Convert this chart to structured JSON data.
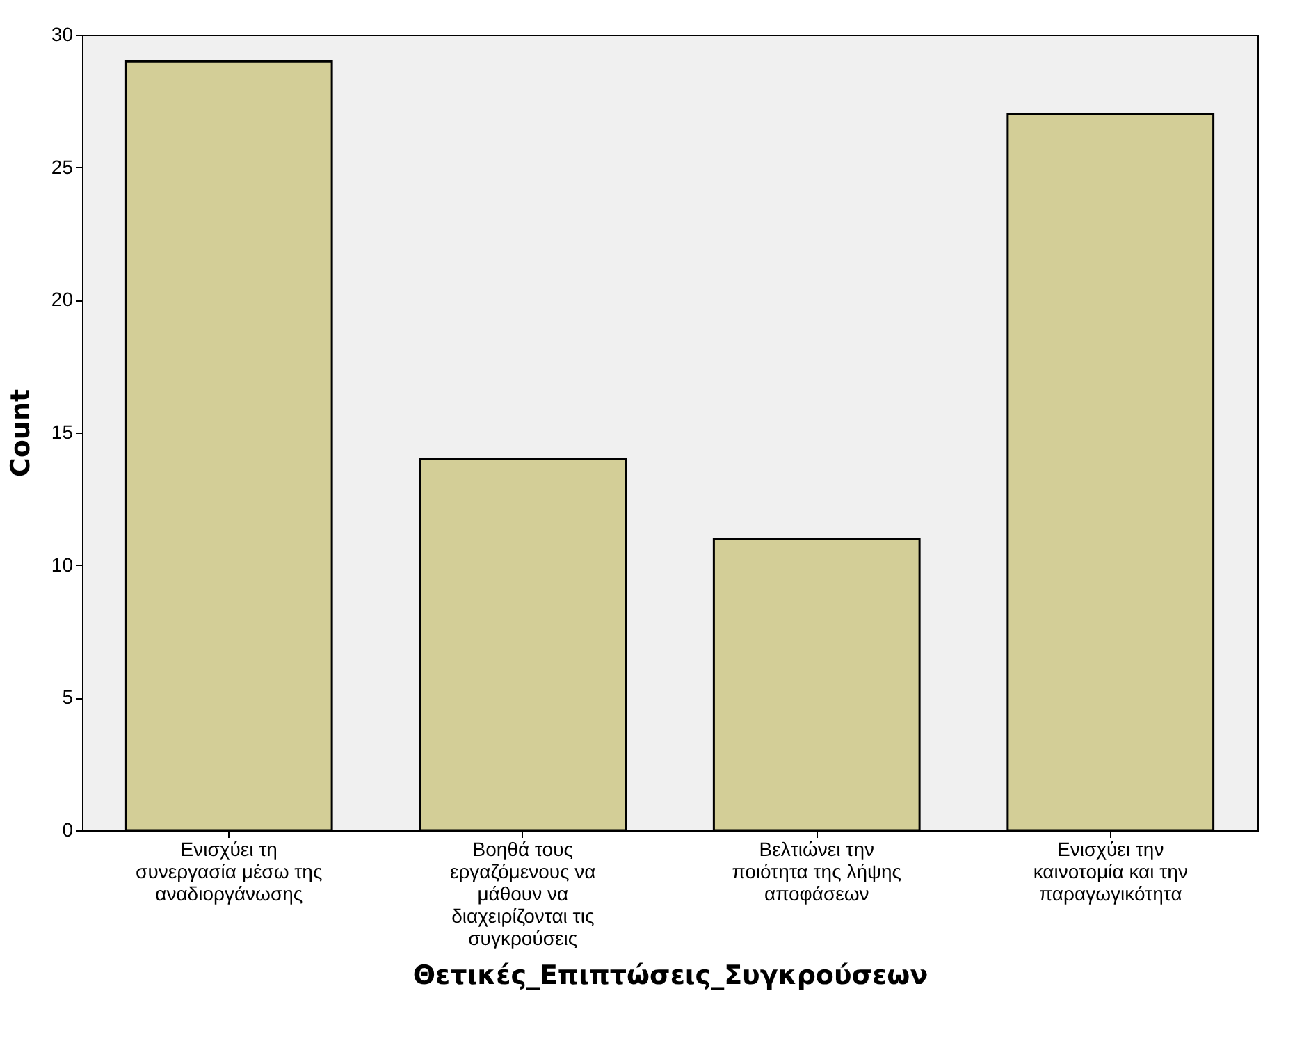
{
  "chart_data": {
    "type": "bar",
    "xlabel": "Θετικές_Επιπτώσεις_Συγκρούσεων",
    "ylabel": "Count",
    "categories": [
      "Ενισχύει τη συνεργασία μέσω της αναδιοργάνωσης",
      "Βοηθά τους εργαζόμενους να μάθουν να διαχειρίζονται τις συγκρούσεις",
      "Βελτιώνει την ποιότητα της λήψης αποφάσεων",
      "Ενισχύει την καινοτομία και την παραγωγικότητα"
    ],
    "values": [
      29,
      14,
      11,
      27
    ],
    "color": "#d3ce97",
    "ylim": [
      0,
      30
    ],
    "yticks": [
      0,
      5,
      10,
      15,
      20,
      25,
      30
    ],
    "grid": false
  }
}
